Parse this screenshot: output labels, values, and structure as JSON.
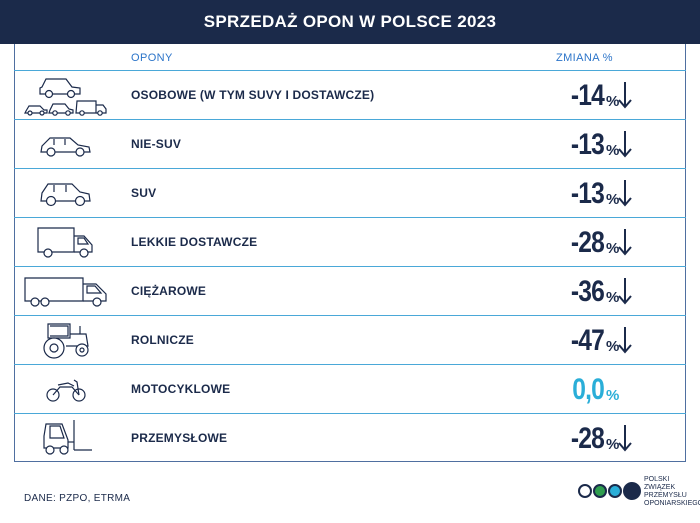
{
  "header": {
    "title": "SPRZEDAŻ OPON W POLSCE 2023"
  },
  "columns": {
    "tires": "OPONY",
    "change": "ZMIANA %"
  },
  "rows": [
    {
      "icon": "car-group-icon",
      "label": "OSOBOWE (W TYM SUVY I DOSTAWCZE)",
      "value": "-14",
      "unit": "%",
      "trend": "down"
    },
    {
      "icon": "sedan-icon",
      "label": "NIE-SUV",
      "value": "-13",
      "unit": "%",
      "trend": "down"
    },
    {
      "icon": "suv-icon",
      "label": "SUV",
      "value": "-13",
      "unit": "%",
      "trend": "down"
    },
    {
      "icon": "van-icon",
      "label": "LEKKIE DOSTAWCZE",
      "value": "-28",
      "unit": "%",
      "trend": "down"
    },
    {
      "icon": "truck-icon",
      "label": "CIĘŻAROWE",
      "value": "-36",
      "unit": "%",
      "trend": "down"
    },
    {
      "icon": "tractor-icon",
      "label": "ROLNICZE",
      "value": "-47",
      "unit": "%",
      "trend": "down"
    },
    {
      "icon": "motorcycle-icon",
      "label": "MOTOCYKLOWE",
      "value": "0,0",
      "unit": "%",
      "trend": "none"
    },
    {
      "icon": "forklift-icon",
      "label": "PRZEMYSŁOWE",
      "value": "-28",
      "unit": "%",
      "trend": "down"
    }
  ],
  "footer": {
    "source": "DANE: PZPO, ETRMA",
    "logo_lines": [
      "POLSKI",
      "ZWIĄZEK",
      "PRZEMYSŁU",
      "OPONIARSKIEGO"
    ]
  },
  "colors": {
    "navy": "#1b2a4a",
    "accent_blue": "#2b74c9",
    "cyan": "#2aaed8",
    "divider": "#4aa8d8",
    "green": "#2f9e4f"
  }
}
